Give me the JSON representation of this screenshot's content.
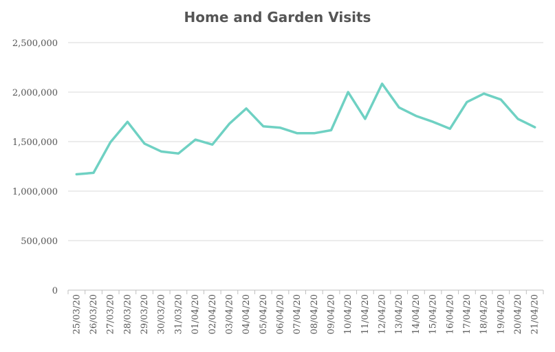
{
  "chart_data": {
    "type": "line",
    "title": "Home and Garden Visits",
    "xlabel": "",
    "ylabel": "",
    "ylim": [
      0,
      2500000
    ],
    "yticks": [
      {
        "value": 0,
        "label": "0"
      },
      {
        "value": 500000,
        "label": "500,000"
      },
      {
        "value": 1000000,
        "label": "1,000,000"
      },
      {
        "value": 1500000,
        "label": "1,500,000"
      },
      {
        "value": 2000000,
        "label": "2,000,000"
      },
      {
        "value": 2500000,
        "label": "2,500,000"
      }
    ],
    "grid": true,
    "legend": "none",
    "line_color": "#6fd1c3",
    "categories": [
      "25/03/20",
      "26/03/20",
      "27/03/20",
      "28/03/20",
      "29/03/20",
      "30/03/20",
      "31/03/20",
      "01/04/20",
      "02/04/20",
      "03/04/20",
      "04/04/20",
      "05/04/20",
      "06/04/20",
      "07/04/20",
      "08/04/20",
      "09/04/20",
      "10/04/20",
      "11/04/20",
      "12/04/20",
      "13/04/20",
      "14/04/20",
      "15/04/20",
      "16/04/20",
      "17/04/20",
      "18/04/20",
      "19/04/20",
      "20/04/20",
      "21/04/20"
    ],
    "values": [
      1170000,
      1185000,
      1495000,
      1700000,
      1480000,
      1400000,
      1380000,
      1520000,
      1470000,
      1680000,
      1835000,
      1655000,
      1640000,
      1585000,
      1585000,
      1615000,
      2000000,
      1730000,
      2085000,
      1845000,
      1760000,
      1700000,
      1630000,
      1900000,
      1985000,
      1925000,
      1730000,
      1645000
    ]
  }
}
